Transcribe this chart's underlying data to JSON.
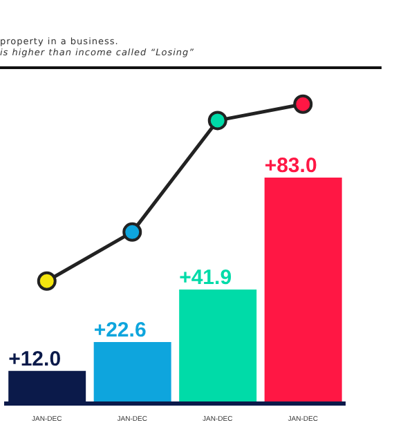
{
  "chart_data": {
    "type": "bar",
    "categories": [
      "JAN-DEC",
      "JAN-DEC",
      "JAN-DEC",
      "JAN-DEC"
    ],
    "series": [
      {
        "values": [
          12.0,
          22.6,
          41.9,
          83.0
        ],
        "colors": [
          "#0b1a4a",
          "#0ea5dd",
          "#00dba8",
          "#ff1744"
        ],
        "value_labels": [
          "+12.0",
          "+22.6",
          "+41.9",
          "+83.0"
        ]
      },
      {
        "type": "line",
        "color": "#222222",
        "colors": [
          "#f5e60f",
          "#0ea5dd",
          "#00dba8",
          "#ff1744"
        ],
        "values": [
          45,
          63,
          104,
          110
        ],
        "marker": "circle"
      }
    ],
    "annotations": [
      "property in a business.",
      "is higher than income called “Losing”"
    ]
  }
}
